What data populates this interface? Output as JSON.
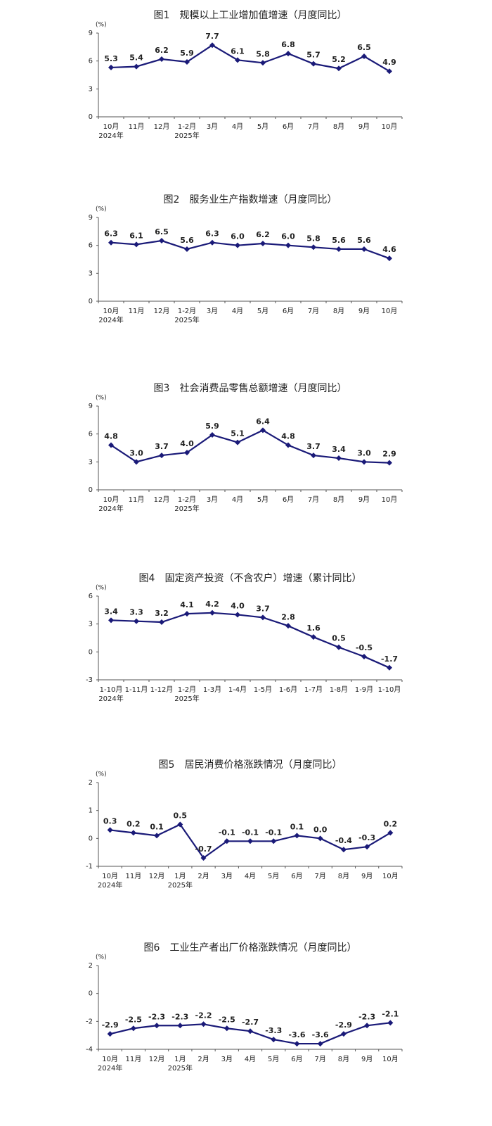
{
  "chart_data": [
    {
      "type": "line",
      "title": "图1　规模以上工业增加值增速（月度同比）",
      "unit": "(%)",
      "color": "#1a1a78",
      "categories": [
        "10月",
        "11月",
        "12月",
        "1-2月",
        "3月",
        "4月",
        "5月",
        "6月",
        "7月",
        "8月",
        "9月",
        "10月"
      ],
      "sublabels": [
        "2024年",
        null,
        null,
        "2025年",
        null,
        null,
        null,
        null,
        null,
        null,
        null,
        null
      ],
      "values": [
        5.3,
        5.4,
        6.2,
        5.9,
        7.7,
        6.1,
        5.8,
        6.8,
        5.7,
        5.2,
        6.5,
        4.9
      ],
      "value_labels": [
        "5.3",
        "5.4",
        "6.2",
        "5.9",
        "7.7",
        "6.1",
        "5.8",
        "6.8",
        "5.7",
        "5.2",
        "6.5",
        "4.9"
      ],
      "ylim": [
        0,
        9
      ],
      "yticks": [
        0,
        3,
        6,
        9
      ]
    },
    {
      "type": "line",
      "title": "图2　服务业生产指数增速（月度同比）",
      "unit": "(%)",
      "color": "#1a1a78",
      "categories": [
        "10月",
        "11月",
        "12月",
        "1-2月",
        "3月",
        "4月",
        "5月",
        "6月",
        "7月",
        "8月",
        "9月",
        "10月"
      ],
      "sublabels": [
        "2024年",
        null,
        null,
        "2025年",
        null,
        null,
        null,
        null,
        null,
        null,
        null,
        null
      ],
      "values": [
        6.3,
        6.1,
        6.5,
        5.6,
        6.3,
        6.0,
        6.2,
        6.0,
        5.8,
        5.6,
        5.6,
        4.6
      ],
      "value_labels": [
        "6.3",
        "6.1",
        "6.5",
        "5.6",
        "6.3",
        "6.0",
        "6.2",
        "6.0",
        "5.8",
        "5.6",
        "5.6",
        "4.6"
      ],
      "ylim": [
        0,
        9
      ],
      "yticks": [
        0,
        3,
        6,
        9
      ]
    },
    {
      "type": "line",
      "title": "图3　社会消费品零售总额增速（月度同比）",
      "unit": "(%)",
      "color": "#1a1a78",
      "categories": [
        "10月",
        "11月",
        "12月",
        "1-2月",
        "3月",
        "4月",
        "5月",
        "6月",
        "7月",
        "8月",
        "9月",
        "10月"
      ],
      "sublabels": [
        "2024年",
        null,
        null,
        "2025年",
        null,
        null,
        null,
        null,
        null,
        null,
        null,
        null
      ],
      "values": [
        4.8,
        3.0,
        3.7,
        4.0,
        5.9,
        5.1,
        6.4,
        4.8,
        3.7,
        3.4,
        3.0,
        2.9
      ],
      "value_labels": [
        "4.8",
        "3.0",
        "3.7",
        "4.0",
        "5.9",
        "5.1",
        "6.4",
        "4.8",
        "3.7",
        "3.4",
        "3.0",
        "2.9"
      ],
      "ylim": [
        0,
        9
      ],
      "yticks": [
        0,
        3,
        6,
        9
      ]
    },
    {
      "type": "line",
      "title": "图4　固定资产投资（不含农户）增速（累计同比）",
      "unit": "(%)",
      "color": "#1a1a78",
      "categories": [
        "1-10月",
        "1-11月",
        "1-12月",
        "1-2月",
        "1-3月",
        "1-4月",
        "1-5月",
        "1-6月",
        "1-7月",
        "1-8月",
        "1-9月",
        "1-10月"
      ],
      "sublabels": [
        "2024年",
        null,
        null,
        "2025年",
        null,
        null,
        null,
        null,
        null,
        null,
        null,
        null
      ],
      "values": [
        3.4,
        3.3,
        3.2,
        4.1,
        4.2,
        4.0,
        3.7,
        2.8,
        1.6,
        0.5,
        -0.5,
        -1.7
      ],
      "value_labels": [
        "3.4",
        "3.3",
        "3.2",
        "4.1",
        "4.2",
        "4.0",
        "3.7",
        "2.8",
        "1.6",
        "0.5",
        "-0.5",
        "-1.7"
      ],
      "ylim": [
        -3,
        6
      ],
      "yticks": [
        -3,
        0,
        3,
        6
      ]
    },
    {
      "type": "line",
      "title": "图5　居民消费价格涨跌情况（月度同比）",
      "unit": "(%)",
      "color": "#1a1a78",
      "categories": [
        "10月",
        "11月",
        "12月",
        "1月",
        "2月",
        "3月",
        "4月",
        "5月",
        "6月",
        "7月",
        "8月",
        "9月",
        "10月"
      ],
      "sublabels": [
        "2024年",
        null,
        null,
        "2025年",
        null,
        null,
        null,
        null,
        null,
        null,
        null,
        null,
        null
      ],
      "values": [
        0.3,
        0.2,
        0.1,
        0.5,
        -0.7,
        -0.1,
        -0.1,
        -0.1,
        0.1,
        0.0,
        -0.4,
        -0.3,
        0.2
      ],
      "value_labels": [
        "0.3",
        "0.2",
        "0.1",
        "0.5",
        "-0.7",
        "-0.1",
        "-0.1",
        "-0.1",
        "0.1",
        "0.0",
        "-0.4",
        "-0.3",
        "0.2"
      ],
      "ylim": [
        -1,
        2
      ],
      "yticks": [
        -1,
        0,
        1,
        2
      ]
    },
    {
      "type": "line",
      "title": "图6　工业生产者出厂价格涨跌情况（月度同比）",
      "unit": "(%)",
      "color": "#1a1a78",
      "categories": [
        "10月",
        "11月",
        "12月",
        "1月",
        "2月",
        "3月",
        "4月",
        "5月",
        "6月",
        "7月",
        "8月",
        "9月",
        "10月"
      ],
      "sublabels": [
        "2024年",
        null,
        null,
        "2025年",
        null,
        null,
        null,
        null,
        null,
        null,
        null,
        null,
        null
      ],
      "values": [
        -2.9,
        -2.5,
        -2.3,
        -2.3,
        -2.2,
        -2.5,
        -2.7,
        -3.3,
        -3.6,
        -3.6,
        -2.9,
        -2.3,
        -2.1
      ],
      "value_labels": [
        "-2.9",
        "-2.5",
        "-2.3",
        "-2.3",
        "-2.2",
        "-2.5",
        "-2.7",
        "-3.3",
        "-3.6",
        "-3.6",
        "-2.9",
        "-2.3",
        "-2.1"
      ],
      "ylim": [
        -4,
        2
      ],
      "yticks": [
        -4,
        -2,
        0,
        2
      ]
    }
  ]
}
